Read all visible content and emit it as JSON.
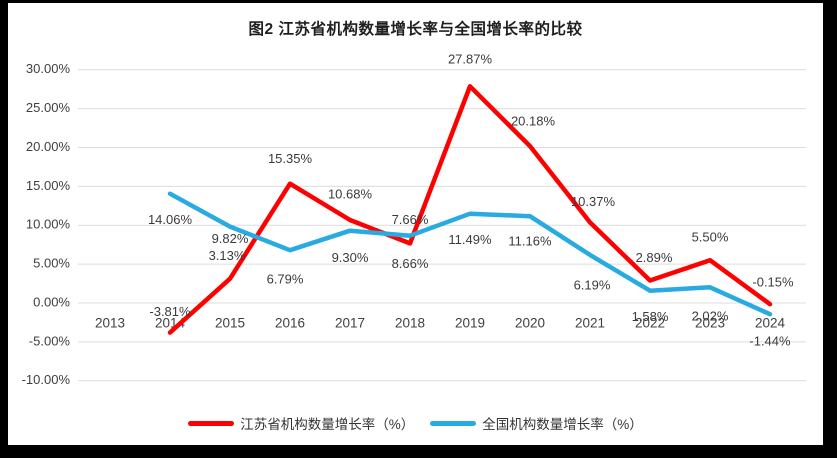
{
  "chart_data": {
    "type": "line",
    "title": "图2  江苏省机构数量增长率与全国增长率的比较",
    "categories": [
      "2013",
      "2014",
      "2015",
      "2016",
      "2017",
      "2018",
      "2019",
      "2020",
      "2021",
      "2022",
      "2023",
      "2024"
    ],
    "series": [
      {
        "name": "江苏省机构数量增长率（%）",
        "color": "#fe0000",
        "values": [
          null,
          -3.81,
          3.13,
          15.35,
          10.68,
          7.66,
          27.87,
          20.18,
          10.37,
          2.89,
          5.5,
          -0.15
        ]
      },
      {
        "name": "全国机构数量增长率（%）",
        "color": "#29abe2",
        "values": [
          null,
          14.06,
          9.82,
          6.79,
          9.3,
          8.66,
          11.49,
          11.16,
          6.19,
          1.58,
          2.02,
          -1.44
        ]
      }
    ],
    "yticks": [
      "30.00%",
      "25.00%",
      "20.00%",
      "15.00%",
      "10.00%",
      "5.00%",
      "0.00%",
      "-5.00%",
      "-10.00%"
    ],
    "ytick_values": [
      30,
      25,
      20,
      15,
      10,
      5,
      0,
      -5,
      -10
    ],
    "ylim": [
      -10,
      30
    ],
    "grid": true,
    "gridline_color": "#dcdcdc",
    "axis_text_color": "#404040",
    "data_label_color": "#3b3b3b",
    "legend_position": "bottom"
  }
}
